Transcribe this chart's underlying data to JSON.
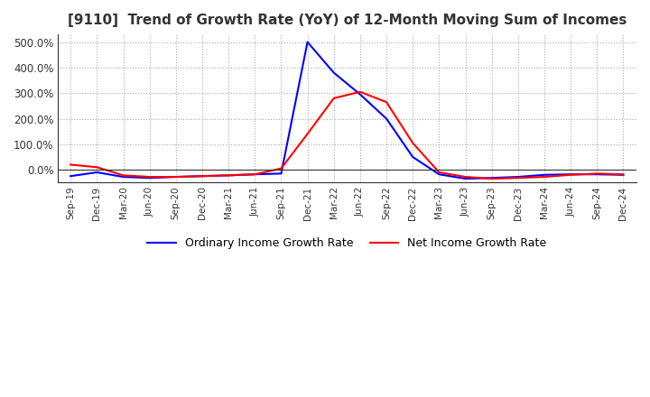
{
  "title": "[9110]  Trend of Growth Rate (YoY) of 12-Month Moving Sum of Incomes",
  "title_fontsize": 11,
  "ylim": [
    -50,
    530
  ],
  "yticks": [
    0,
    100,
    200,
    300,
    400,
    500
  ],
  "ytick_labels": [
    "0.0%",
    "100.0%",
    "200.0%",
    "300.0%",
    "400.0%",
    "500.0%"
  ],
  "legend_labels": [
    "Ordinary Income Growth Rate",
    "Net Income Growth Rate"
  ],
  "legend_colors": [
    "#0000ff",
    "#ff0000"
  ],
  "grid_color": "#aaaaaa",
  "x_labels": [
    "Sep-19",
    "Dec-19",
    "Mar-20",
    "Jun-20",
    "Sep-20",
    "Dec-20",
    "Mar-21",
    "Jun-21",
    "Sep-21",
    "Dec-21",
    "Mar-22",
    "Jun-22",
    "Sep-22",
    "Dec-22",
    "Mar-23",
    "Jun-23",
    "Sep-23",
    "Dec-23",
    "Mar-24",
    "Jun-24",
    "Sep-24",
    "Dec-24"
  ],
  "oi_y": [
    -25,
    -10,
    -28,
    -32,
    -28,
    -25,
    -22,
    -18,
    -15,
    500,
    380,
    295,
    200,
    50,
    -18,
    -35,
    -32,
    -28,
    -20,
    -18,
    -18,
    -20
  ],
  "ni_y": [
    20,
    10,
    -22,
    -28,
    -28,
    -25,
    -22,
    -18,
    5,
    140,
    280,
    305,
    265,
    105,
    -10,
    -28,
    -35,
    -32,
    -28,
    -20,
    -15,
    -18
  ]
}
